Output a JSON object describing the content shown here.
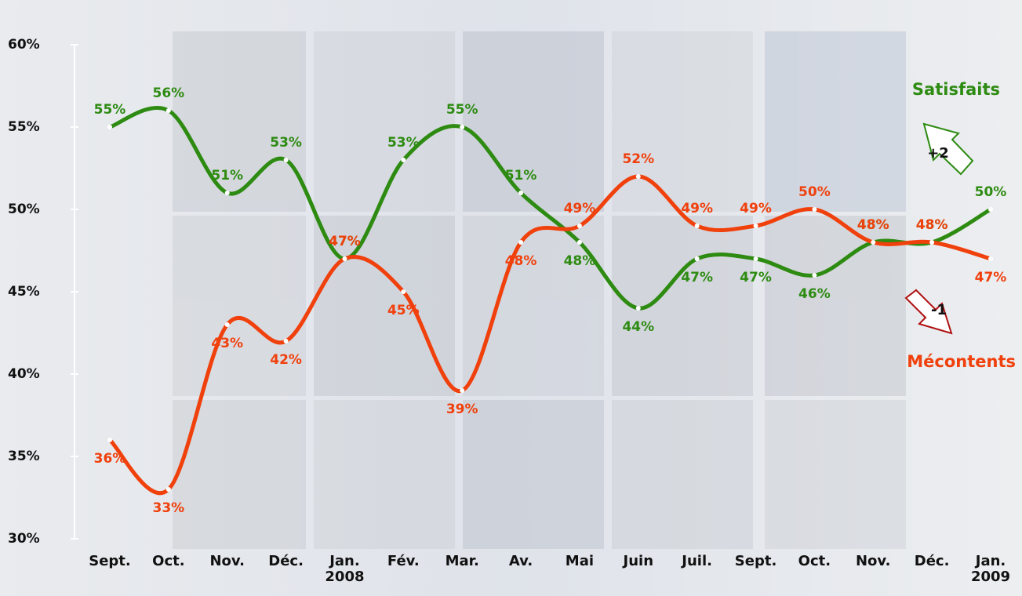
{
  "chart_data": {
    "type": "line",
    "categories": [
      "Sept.",
      "Oct.",
      "Nov.",
      "Déc.",
      "Jan. 2008",
      "Fév.",
      "Mar.",
      "Av.",
      "Mai",
      "Juin",
      "Juil.",
      "Sept.",
      "Oct.",
      "Nov.",
      "Déc.",
      "Jan. 2009"
    ],
    "series": [
      {
        "name": "Satisfaits",
        "color": "#2e8b12",
        "values": [
          55,
          56,
          51,
          53,
          47,
          53,
          55,
          51,
          48,
          44,
          47,
          47,
          46,
          48,
          48,
          50
        ],
        "value_labels": [
          "55%",
          "56%",
          "51%",
          "53%",
          "47%",
          "53%",
          "55%",
          "51%",
          "48%",
          "44%",
          "47%",
          "47%",
          "46%",
          "48%",
          "48%",
          "50%"
        ]
      },
      {
        "name": "Mécontents",
        "color": "#f0400c",
        "values": [
          36,
          33,
          43,
          42,
          47,
          45,
          39,
          48,
          49,
          52,
          49,
          49,
          50,
          48,
          48,
          47
        ],
        "value_labels": [
          "36%",
          "33%",
          "43%",
          "42%",
          "47%",
          "45%",
          "39%",
          "48%",
          "49%",
          "52%",
          "49%",
          "49%",
          "50%",
          "48%",
          "48%",
          "47%"
        ]
      }
    ],
    "ylim": [
      30,
      60
    ],
    "yticks": [
      {
        "value": 30,
        "label": "30%"
      },
      {
        "value": 35,
        "label": "35%"
      },
      {
        "value": 40,
        "label": "40%"
      },
      {
        "value": 45,
        "label": "45%"
      },
      {
        "value": 50,
        "label": "50%"
      },
      {
        "value": 55,
        "label": "55%"
      },
      {
        "value": 60,
        "label": "60%"
      }
    ],
    "annotations": [
      "+2",
      "-1"
    ]
  }
}
